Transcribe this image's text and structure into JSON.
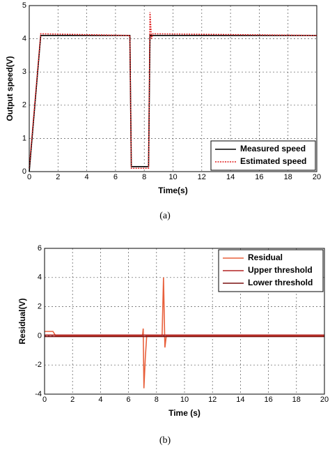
{
  "chart_data": [
    {
      "type": "line",
      "caption": "(a)",
      "xlabel": "Time(s)",
      "ylabel": "Output speed(V)",
      "xlim": [
        0,
        20
      ],
      "xticks": [
        0,
        2,
        4,
        6,
        8,
        10,
        12,
        14,
        16,
        18,
        20
      ],
      "ylim": [
        0,
        5
      ],
      "yticks": [
        0,
        1,
        2,
        3,
        4,
        5
      ],
      "grid": true,
      "legend": "lower right",
      "series": [
        {
          "name": "Measured speed",
          "color": "#000000",
          "dash": false,
          "x": [
            0,
            0.8,
            7.0,
            7.1,
            8.3,
            8.4,
            20
          ],
          "values": [
            0,
            4.1,
            4.1,
            0.15,
            0.15,
            4.1,
            4.1
          ]
        },
        {
          "name": "Estimated speed",
          "color": "#e02020",
          "dash": true,
          "x": [
            0,
            0.8,
            7.0,
            7.1,
            8.3,
            8.4,
            8.5,
            8.6,
            20
          ],
          "values": [
            0.1,
            4.15,
            4.1,
            0.1,
            0.1,
            4.8,
            4.0,
            4.15,
            4.1
          ]
        }
      ]
    },
    {
      "type": "line",
      "caption": "(b)",
      "xlabel": "Time (s)",
      "ylabel": "Residual(V)",
      "xlim": [
        0,
        20
      ],
      "xticks": [
        0,
        2,
        4,
        6,
        8,
        10,
        12,
        14,
        16,
        18,
        20
      ],
      "ylim": [
        -4,
        6
      ],
      "yticks": [
        -4,
        -2,
        0,
        2,
        4,
        6
      ],
      "grid": true,
      "legend": "upper right",
      "series": [
        {
          "name": "Residual",
          "color": "#e8603c",
          "dash": false,
          "x": [
            0,
            0.6,
            0.8,
            7.0,
            7.05,
            7.1,
            7.2,
            7.3,
            8.4,
            8.5,
            8.6,
            8.7,
            20
          ],
          "values": [
            0.3,
            0.3,
            0,
            0,
            0.5,
            -3.6,
            -1.5,
            0,
            0,
            4,
            -0.8,
            0,
            0
          ]
        },
        {
          "name": "Upper threshold",
          "color": "#b22222",
          "dash": false,
          "x": [
            0,
            20
          ],
          "values": [
            0.05,
            0.05
          ]
        },
        {
          "name": "Lower threshold",
          "color": "#7a1010",
          "dash": false,
          "x": [
            0,
            20
          ],
          "values": [
            -0.05,
            -0.05
          ]
        }
      ]
    }
  ]
}
